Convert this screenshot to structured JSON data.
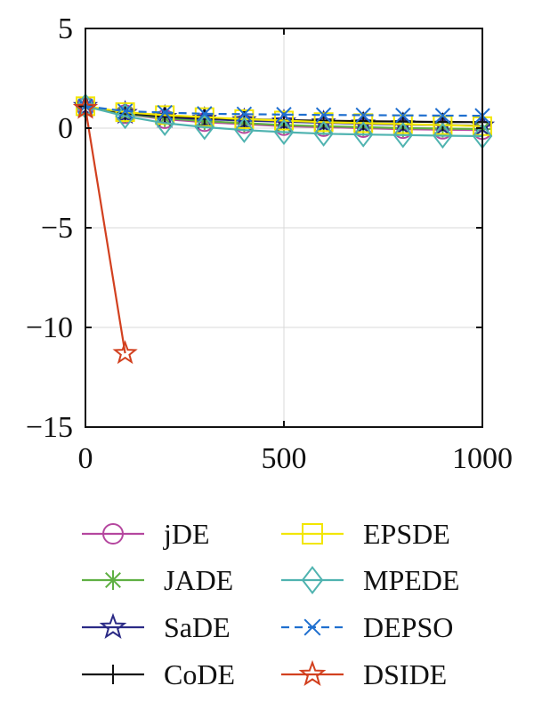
{
  "chart_data": {
    "type": "line",
    "title": "",
    "xlabel": "",
    "ylabel": "",
    "xlim": [
      0,
      1000
    ],
    "ylim": [
      -15,
      5
    ],
    "x_ticks": [
      0,
      500,
      1000
    ],
    "y_ticks": [
      5,
      0,
      -5,
      -10,
      -15
    ],
    "x_tick_labels": [
      "0",
      "500",
      "1000"
    ],
    "y_tick_labels": [
      "5",
      "0",
      "−5",
      "−10",
      "−15"
    ],
    "grid": true,
    "legend_position": "bottom",
    "x": [
      0,
      100,
      200,
      300,
      400,
      500,
      600,
      700,
      800,
      900,
      1000
    ],
    "series": [
      {
        "name": "jDE",
        "color": "#b5479f",
        "marker": "circle",
        "dash": false,
        "values": [
          1.1,
          0.7,
          0.45,
          0.3,
          0.2,
          0.1,
          0.05,
          0.0,
          -0.05,
          -0.08,
          -0.1
        ]
      },
      {
        "name": "JADE",
        "color": "#5fb043",
        "marker": "asterisk",
        "dash": false,
        "values": [
          1.1,
          0.7,
          0.5,
          0.35,
          0.25,
          0.15,
          0.1,
          0.05,
          0.0,
          -0.02,
          -0.05
        ]
      },
      {
        "name": "SaDE",
        "color": "#2b2a86",
        "marker": "star",
        "dash": false,
        "values": [
          1.1,
          0.75,
          0.55,
          0.45,
          0.38,
          0.32,
          0.27,
          0.22,
          0.18,
          0.15,
          0.12
        ]
      },
      {
        "name": "CoDE",
        "color": "#111111",
        "marker": "plus",
        "dash": false,
        "values": [
          1.1,
          0.75,
          0.6,
          0.5,
          0.45,
          0.4,
          0.37,
          0.35,
          0.33,
          0.31,
          0.3
        ]
      },
      {
        "name": "EPSDE",
        "color": "#f2e600",
        "marker": "square",
        "dash": false,
        "values": [
          1.1,
          0.8,
          0.65,
          0.55,
          0.45,
          0.38,
          0.3,
          0.25,
          0.2,
          0.15,
          0.1
        ]
      },
      {
        "name": "MPEDE",
        "color": "#4fb3b0",
        "marker": "diamond",
        "dash": false,
        "values": [
          1.1,
          0.6,
          0.25,
          0.05,
          -0.1,
          -0.2,
          -0.28,
          -0.32,
          -0.35,
          -0.38,
          -0.4
        ]
      },
      {
        "name": "DEPSO",
        "color": "#1f6fcf",
        "marker": "x",
        "dash": true,
        "values": [
          1.1,
          0.85,
          0.78,
          0.72,
          0.7,
          0.68,
          0.66,
          0.65,
          0.64,
          0.63,
          0.62
        ]
      },
      {
        "name": "DSIDE",
        "color": "#d2401f",
        "marker": "star",
        "dash": false,
        "x": [
          0,
          100
        ],
        "values": [
          1.0,
          -11.3
        ]
      }
    ]
  }
}
